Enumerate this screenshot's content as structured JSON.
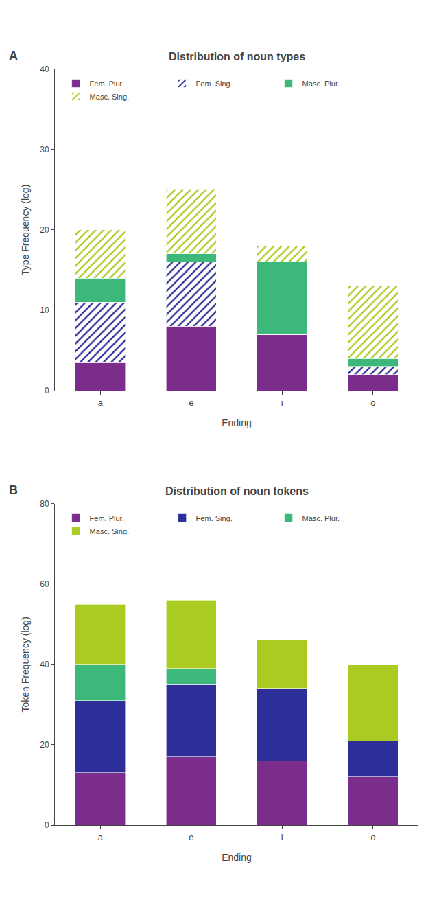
{
  "chart_data": [
    {
      "type": "bar",
      "stacked": true,
      "title": "Distribution of noun types",
      "annotations": [
        "A"
      ],
      "xlabel": "Ending",
      "ylabel": "Type Frequency (log)",
      "categories": [
        "a",
        "e",
        "i",
        "o"
      ],
      "series": [
        {
          "name": "Fem. Plur.",
          "color": "#7B2D8B",
          "marker": "hatch",
          "values": [
            3.5,
            8.0,
            7.0,
            2.0
          ]
        },
        {
          "name": "Fem. Sing.",
          "color": "#2E2E99",
          "marker": "open_hatch",
          "values": [
            7.5,
            8.0,
            0.0,
            1.0
          ]
        },
        {
          "name": "Masc. Plur.",
          "color": "#3CB87A",
          "marker": "hatch",
          "values": [
            3.0,
            1.0,
            9.0,
            1.0
          ]
        },
        {
          "name": "Masc. Sing.",
          "color": "#AACC22",
          "marker": "open_hatch",
          "values": [
            6.0,
            8.0,
            2.0,
            9.0
          ]
        }
      ],
      "ylim": [
        0,
        40
      ],
      "yticks": [
        0,
        10,
        20,
        30,
        40
      ],
      "grid": false,
      "legend": "upper left"
    },
    {
      "type": "bar",
      "stacked": true,
      "title": "Distribution of noun tokens",
      "annotations": [
        "B"
      ],
      "xlabel": "Ending",
      "ylabel": "Token Frequency (log)",
      "categories": [
        "a",
        "e",
        "i",
        "o"
      ],
      "series": [
        {
          "name": "Fem. Plur.",
          "color": "#7B2D8B",
          "values": [
            13.0,
            17.0,
            16.0,
            12.0
          ]
        },
        {
          "name": "Fem. Sing.",
          "color": "#2E2E99",
          "values": [
            18.0,
            18.0,
            18.0,
            9.0
          ]
        },
        {
          "name": "Masc. Plur.",
          "color": "#3CB87A",
          "values": [
            9.0,
            4.0,
            0.0,
            0.0
          ]
        },
        {
          "name": "Masc. Sing.",
          "color": "#AACC22",
          "values": [
            15.0,
            17.0,
            12.0,
            19.0
          ]
        }
      ],
      "ylim": [
        0,
        80
      ],
      "yticks": [
        0,
        20,
        40,
        60,
        80
      ],
      "grid": false,
      "legend": "upper left"
    }
  ]
}
